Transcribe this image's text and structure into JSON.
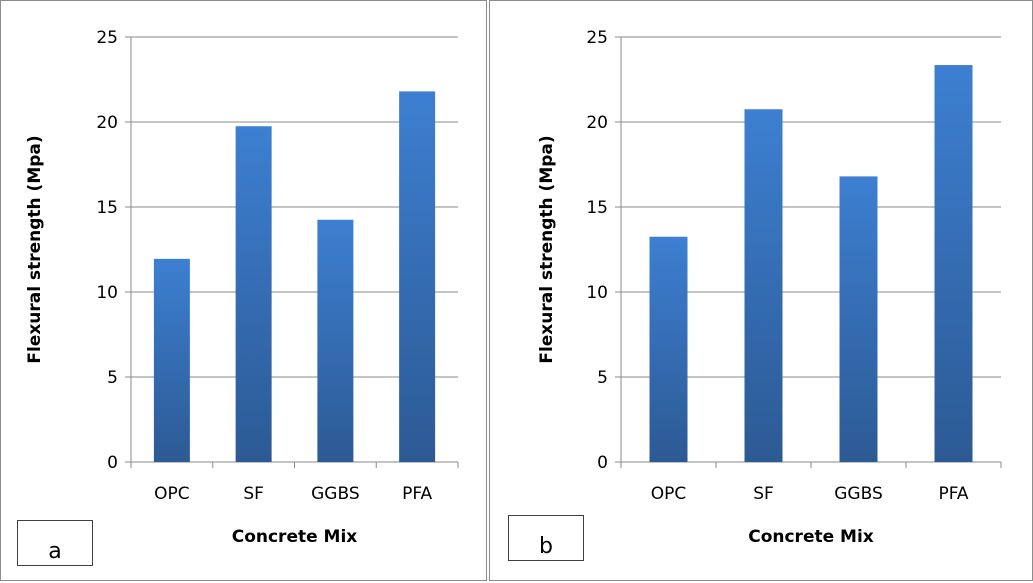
{
  "chart_data": [
    {
      "type": "bar",
      "panel_label": "a",
      "categories": [
        "OPC",
        "SF",
        "GGBS",
        "PFA"
      ],
      "values": [
        11.95,
        19.75,
        14.25,
        21.8
      ],
      "xlabel": "Concrete Mix",
      "ylabel": "Flexural strength  (Mpa)",
      "ylim": [
        0,
        25
      ],
      "yticks": [
        "0",
        "5",
        "10",
        "15",
        "20",
        "25"
      ],
      "grid": true,
      "legend": "none",
      "bar_color_top": "#3d7fd1",
      "bar_color_bottom": "#2c5a94"
    },
    {
      "type": "bar",
      "panel_label": "b",
      "categories": [
        "OPC",
        "SF",
        "GGBS",
        "PFA"
      ],
      "values": [
        13.25,
        20.75,
        16.8,
        23.35
      ],
      "xlabel": "Concrete Mix",
      "ylabel": "Flexural strength  (Mpa)",
      "ylim": [
        0,
        25
      ],
      "yticks": [
        "0",
        "5",
        "10",
        "15",
        "20",
        "25"
      ],
      "grid": true,
      "legend": "none",
      "bar_color_top": "#3d7fd1",
      "bar_color_bottom": "#2c5a94"
    }
  ]
}
